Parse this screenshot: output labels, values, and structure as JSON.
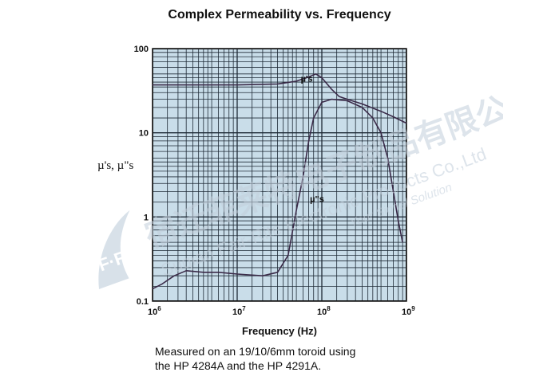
{
  "chart_data": {
    "type": "line",
    "title": "Complex Permeability vs. Frequency",
    "xlabel": "Frequency (Hz)",
    "ylabel": "µ's, µ\"s",
    "xscale": "log",
    "yscale": "log",
    "xlim": [
      1000000,
      1000000000
    ],
    "ylim": [
      0.1,
      100
    ],
    "grid": true,
    "x_ticks": [
      {
        "base": "10",
        "exp": "6"
      },
      {
        "base": "10",
        "exp": "7"
      },
      {
        "base": "10",
        "exp": "8"
      },
      {
        "base": "10",
        "exp": "9"
      }
    ],
    "y_ticks": [
      "100",
      "10",
      "1",
      "0.1"
    ],
    "series": [
      {
        "name": "µ's",
        "color": "#3a2a48",
        "points": [
          [
            1000000,
            37
          ],
          [
            3000000,
            37
          ],
          [
            10000000,
            37
          ],
          [
            30000000,
            38
          ],
          [
            50000000,
            41
          ],
          [
            70000000,
            46
          ],
          [
            85000000,
            50
          ],
          [
            100000000,
            45
          ],
          [
            130000000,
            33
          ],
          [
            160000000,
            27
          ],
          [
            200000000,
            25
          ],
          [
            300000000,
            22
          ],
          [
            500000000,
            18
          ],
          [
            700000000,
            15.5
          ],
          [
            1000000000,
            13
          ]
        ]
      },
      {
        "name": "µ\"s",
        "color": "#3a2a48",
        "points": [
          [
            1000000,
            0.14
          ],
          [
            1300000,
            0.16
          ],
          [
            1800000,
            0.2
          ],
          [
            2500000,
            0.23
          ],
          [
            4000000,
            0.22
          ],
          [
            6000000,
            0.22
          ],
          [
            10000000,
            0.21
          ],
          [
            20000000,
            0.2
          ],
          [
            30000000,
            0.22
          ],
          [
            40000000,
            0.35
          ],
          [
            50000000,
            1.2
          ],
          [
            60000000,
            3
          ],
          [
            70000000,
            8
          ],
          [
            80000000,
            15
          ],
          [
            100000000,
            23
          ],
          [
            130000000,
            25
          ],
          [
            200000000,
            24
          ],
          [
            300000000,
            20
          ],
          [
            400000000,
            15
          ],
          [
            500000000,
            10
          ],
          [
            600000000,
            5
          ],
          [
            700000000,
            2
          ],
          [
            800000000,
            0.9
          ],
          [
            900000000,
            0.5
          ]
        ]
      }
    ],
    "annotations": [
      {
        "text": "µ's",
        "x": 70000000,
        "y": 48
      },
      {
        "text": "µ\"s",
        "x": 90000000,
        "y": 1.8
      }
    ]
  },
  "caption": {
    "line1": "Measured on an 19/10/6mm toroid using",
    "line2": "the HP 4284A and the HP 4291A."
  },
  "watermark": {
    "company_cn": "宿迁菲莱特电子制品有限公司",
    "company_en": "Suqian Fair-Rite Electronic Products Co.,Ltd",
    "slogan": "Your Signal Solution",
    "logo_text": "F·R",
    "color": "#c8d2dd"
  },
  "colors": {
    "plot_background": "#c9dde9",
    "grid": "#1e2a36",
    "curve": "#3a2a48"
  }
}
